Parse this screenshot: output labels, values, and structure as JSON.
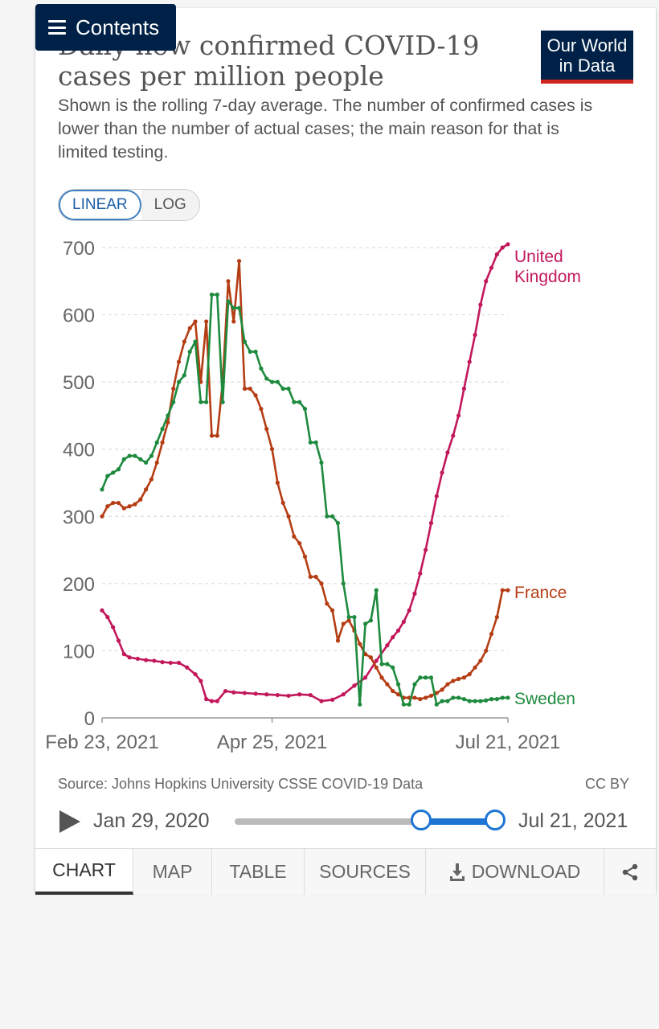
{
  "header": {
    "contents_label": "Contents"
  },
  "title": "Daily new confirmed COVID-19 cases per million people",
  "subtitle": "Shown is the rolling 7-day average. The number of confirmed cases is lower than the number of actual cases; the main reason for that is limited testing.",
  "logo": {
    "line1": "Our World",
    "line2": "in Data"
  },
  "scale_toggle": {
    "linear": "LINEAR",
    "log": "LOG"
  },
  "chart_data": {
    "type": "line",
    "title": "Daily new confirmed COVID-19 cases per million people",
    "xlabel": "",
    "ylabel": "",
    "ylim": [
      0,
      700
    ],
    "yticks": [
      0,
      100,
      200,
      300,
      400,
      500,
      600,
      700
    ],
    "xtick_labels": [
      "Feb 23, 2021",
      "Apr 25, 2021",
      "Jul 21, 2021"
    ],
    "x_range_days": [
      0,
      148
    ],
    "series": [
      {
        "name": "United Kingdom",
        "label_lines": [
          "United",
          "Kingdom"
        ],
        "color": "#c2185b",
        "x": [
          0,
          2,
          4,
          6,
          8,
          10,
          13,
          16,
          19,
          22,
          25,
          28,
          31,
          34,
          36,
          38,
          40,
          42,
          45,
          48,
          52,
          56,
          60,
          64,
          68,
          72,
          76,
          80,
          84,
          88,
          92,
          96,
          100,
          104,
          106,
          108,
          110,
          112,
          114,
          116,
          118,
          120,
          122,
          124,
          126,
          128,
          130,
          132,
          134,
          136,
          138,
          140,
          142,
          144,
          146,
          148
        ],
        "values": [
          160,
          150,
          135,
          115,
          95,
          90,
          88,
          86,
          85,
          83,
          82,
          82,
          75,
          65,
          55,
          28,
          25,
          25,
          40,
          38,
          37,
          36,
          35,
          34,
          33,
          35,
          34,
          25,
          27,
          35,
          48,
          60,
          85,
          108,
          120,
          130,
          143,
          160,
          185,
          215,
          250,
          290,
          330,
          365,
          395,
          420,
          450,
          490,
          530,
          570,
          615,
          650,
          670,
          690,
          700,
          705
        ]
      },
      {
        "name": "France",
        "label_lines": [
          "France"
        ],
        "color": "#b53d14",
        "x": [
          0,
          2,
          4,
          6,
          8,
          10,
          12,
          14,
          16,
          18,
          20,
          22,
          24,
          26,
          28,
          30,
          32,
          34,
          36,
          38,
          40,
          42,
          44,
          46,
          48,
          50,
          52,
          54,
          56,
          58,
          60,
          62,
          64,
          66,
          68,
          70,
          72,
          74,
          76,
          78,
          80,
          82,
          84,
          86,
          88,
          90,
          92,
          94,
          96,
          98,
          100,
          102,
          104,
          106,
          108,
          110,
          112,
          114,
          116,
          118,
          120,
          122,
          124,
          126,
          128,
          130,
          132,
          134,
          136,
          138,
          140,
          142,
          144,
          146,
          148
        ],
        "values": [
          300,
          315,
          320,
          320,
          312,
          315,
          318,
          325,
          340,
          355,
          380,
          410,
          440,
          490,
          530,
          560,
          580,
          590,
          500,
          590,
          420,
          420,
          500,
          650,
          590,
          680,
          490,
          490,
          480,
          460,
          430,
          400,
          350,
          320,
          300,
          270,
          260,
          240,
          210,
          210,
          200,
          170,
          160,
          115,
          140,
          145,
          130,
          110,
          95,
          90,
          75,
          60,
          50,
          40,
          35,
          30,
          30,
          30,
          28,
          30,
          33,
          37,
          42,
          50,
          55,
          58,
          60,
          65,
          75,
          85,
          100,
          125,
          150,
          190,
          190
        ]
      },
      {
        "name": "Sweden",
        "label_lines": [
          "Sweden"
        ],
        "color": "#1e8a3e",
        "x": [
          0,
          2,
          4,
          6,
          8,
          10,
          12,
          14,
          16,
          18,
          20,
          22,
          24,
          26,
          28,
          30,
          32,
          34,
          36,
          38,
          40,
          42,
          44,
          46,
          48,
          50,
          52,
          54,
          56,
          58,
          60,
          62,
          64,
          66,
          68,
          70,
          72,
          74,
          76,
          78,
          80,
          82,
          84,
          86,
          88,
          90,
          92,
          94,
          96,
          98,
          100,
          102,
          104,
          106,
          108,
          110,
          112,
          114,
          116,
          118,
          120,
          122,
          124,
          126,
          128,
          130,
          132,
          134,
          136,
          138,
          140,
          142,
          144,
          146,
          148
        ],
        "values": [
          340,
          360,
          365,
          370,
          385,
          390,
          390,
          385,
          380,
          390,
          410,
          430,
          450,
          470,
          500,
          510,
          545,
          560,
          470,
          470,
          630,
          630,
          470,
          620,
          610,
          610,
          560,
          545,
          545,
          520,
          505,
          500,
          500,
          490,
          490,
          470,
          470,
          460,
          410,
          410,
          380,
          300,
          300,
          290,
          200,
          150,
          150,
          20,
          140,
          145,
          190,
          80,
          80,
          75,
          50,
          20,
          20,
          50,
          60,
          60,
          60,
          20,
          25,
          25,
          30,
          30,
          28,
          25,
          25,
          25,
          26,
          28,
          28,
          30,
          30
        ]
      }
    ]
  },
  "source_text": "Source: Johns Hopkins University CSSE COVID-19 Data",
  "license": "CC BY",
  "timeline": {
    "start_date": "Jan 29, 2020",
    "end_date": "Jul 21, 2021"
  },
  "tabs": [
    "CHART",
    "MAP",
    "TABLE",
    "SOURCES",
    "DOWNLOAD"
  ]
}
